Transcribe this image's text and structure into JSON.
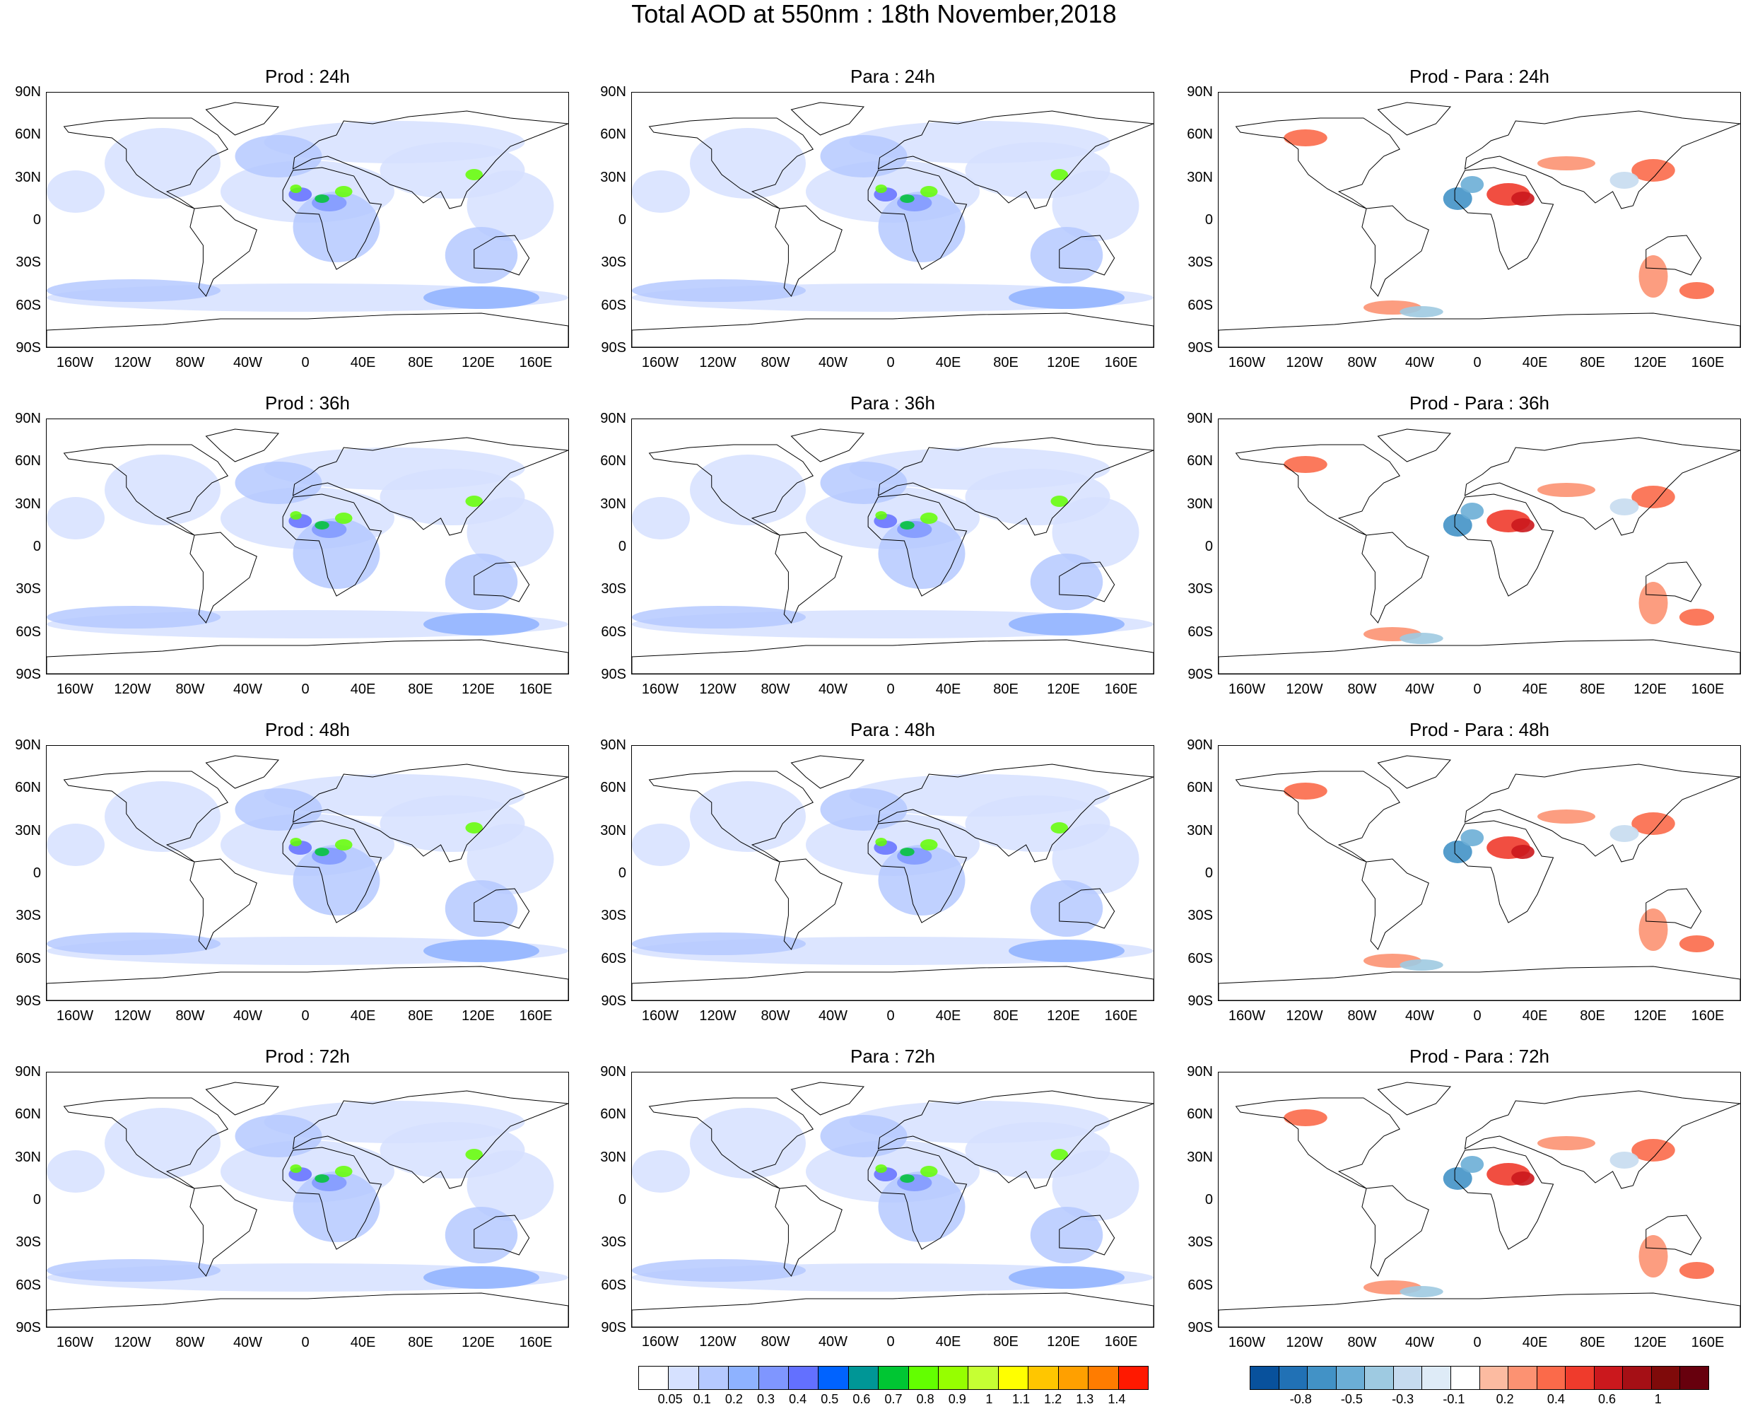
{
  "title": "Total AOD at 550nm : 18th November,2018",
  "lat_labels": [
    "90N",
    "60N",
    "30N",
    "0",
    "30S",
    "60S",
    "90S"
  ],
  "lon_labels": [
    "160W",
    "120W",
    "80W",
    "40W",
    "0",
    "40E",
    "80E",
    "120E",
    "160E"
  ],
  "panels": [
    {
      "title": "Prod : 24h",
      "kind": "aod"
    },
    {
      "title": "Para : 24h",
      "kind": "aod"
    },
    {
      "title": "Prod - Para : 24h",
      "kind": "diff"
    },
    {
      "title": "Prod : 36h",
      "kind": "aod"
    },
    {
      "title": "Para : 36h",
      "kind": "aod"
    },
    {
      "title": "Prod - Para : 36h",
      "kind": "diff"
    },
    {
      "title": "Prod : 48h",
      "kind": "aod"
    },
    {
      "title": "Para : 48h",
      "kind": "aod"
    },
    {
      "title": "Prod - Para : 48h",
      "kind": "diff"
    },
    {
      "title": "Prod : 72h",
      "kind": "aod"
    },
    {
      "title": "Para : 72h",
      "kind": "aod"
    },
    {
      "title": "Prod - Para : 72h",
      "kind": "diff"
    }
  ],
  "aod_colorbar": {
    "labels": [
      "0.05",
      "0.1",
      "0.2",
      "0.3",
      "0.4",
      "0.5",
      "0.6",
      "0.7",
      "0.8",
      "0.9",
      "1",
      "1.1",
      "1.2",
      "1.3",
      "1.4"
    ],
    "colors": [
      "#ffffff",
      "#d6e1ff",
      "#b5c9ff",
      "#8eb2ff",
      "#7f96ff",
      "#6370ff",
      "#0063ff",
      "#009696",
      "#00c633",
      "#63ff00",
      "#96ff00",
      "#c6ff33",
      "#ffff00",
      "#ffc600",
      "#ffa000",
      "#ff7c00",
      "#ff1900"
    ]
  },
  "diff_colorbar": {
    "labels": [
      "-0.8",
      "-0.5",
      "-0.3",
      "-0.1",
      "0.2",
      "0.4",
      "0.6",
      "1"
    ],
    "colors": [
      "#08519c",
      "#2171b5",
      "#4292c6",
      "#6baed6",
      "#9ecae1",
      "#c6dbef",
      "#deebf7",
      "#ffffff",
      "#fcbba1",
      "#fc9272",
      "#fb6a4a",
      "#ef3b2c",
      "#cb181d",
      "#a50f15",
      "#7f0a0a",
      "#67000d"
    ]
  }
}
